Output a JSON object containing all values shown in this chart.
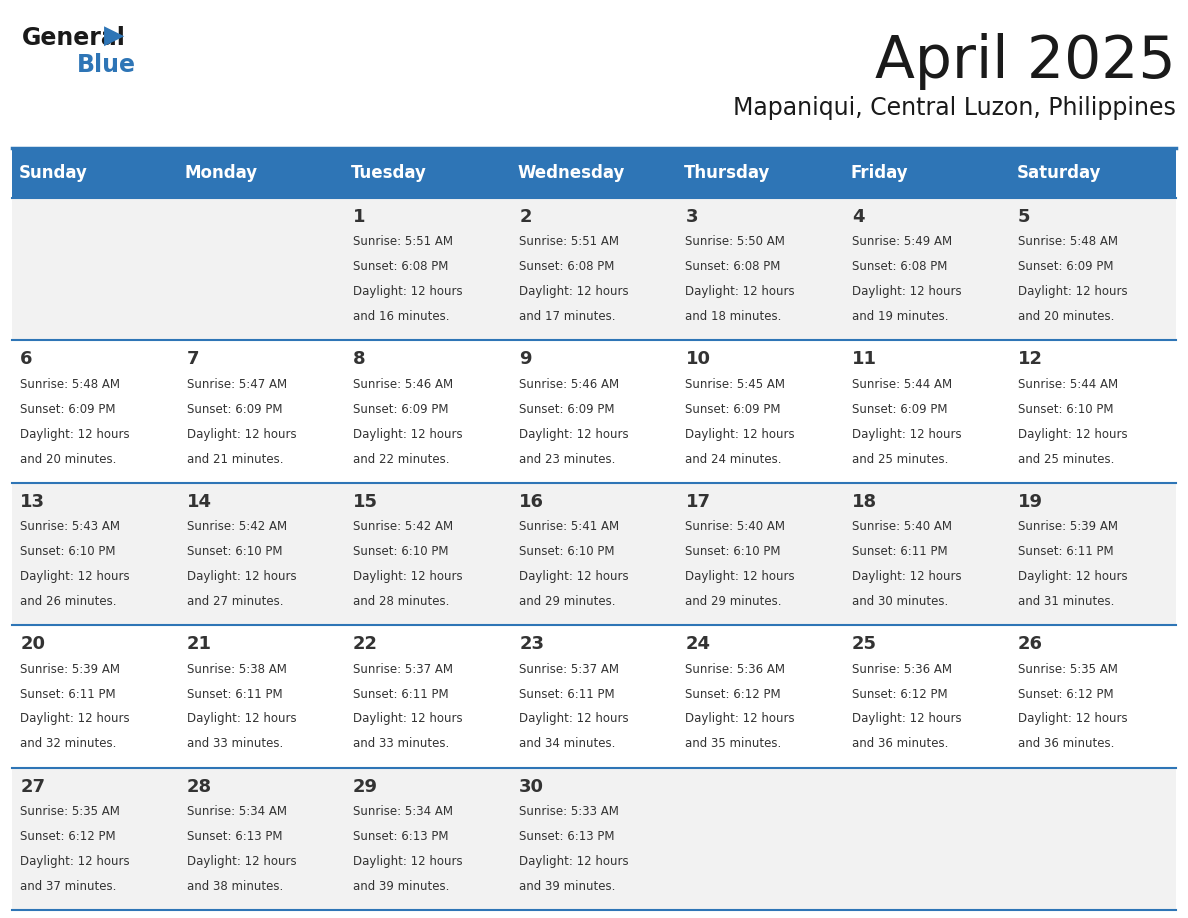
{
  "title": "April 2025",
  "subtitle": "Mapaniqui, Central Luzon, Philippines",
  "header_bg": "#2E75B6",
  "header_text_color": "#FFFFFF",
  "days_of_week": [
    "Sunday",
    "Monday",
    "Tuesday",
    "Wednesday",
    "Thursday",
    "Friday",
    "Saturday"
  ],
  "row_bg_odd": "#F2F2F2",
  "row_bg_even": "#FFFFFF",
  "cell_text_color": "#333333",
  "divider_color": "#2E75B6",
  "logo_general_color": "#1a1a1a",
  "logo_blue_color": "#2E75B6",
  "weeks": [
    {
      "days": [
        {
          "date": "",
          "sunrise": "",
          "sunset": "",
          "daylight": ""
        },
        {
          "date": "",
          "sunrise": "",
          "sunset": "",
          "daylight": ""
        },
        {
          "date": "1",
          "sunrise": "5:51 AM",
          "sunset": "6:08 PM",
          "daylight": "12 hours\nand 16 minutes."
        },
        {
          "date": "2",
          "sunrise": "5:51 AM",
          "sunset": "6:08 PM",
          "daylight": "12 hours\nand 17 minutes."
        },
        {
          "date": "3",
          "sunrise": "5:50 AM",
          "sunset": "6:08 PM",
          "daylight": "12 hours\nand 18 minutes."
        },
        {
          "date": "4",
          "sunrise": "5:49 AM",
          "sunset": "6:08 PM",
          "daylight": "12 hours\nand 19 minutes."
        },
        {
          "date": "5",
          "sunrise": "5:48 AM",
          "sunset": "6:09 PM",
          "daylight": "12 hours\nand 20 minutes."
        }
      ]
    },
    {
      "days": [
        {
          "date": "6",
          "sunrise": "5:48 AM",
          "sunset": "6:09 PM",
          "daylight": "12 hours\nand 20 minutes."
        },
        {
          "date": "7",
          "sunrise": "5:47 AM",
          "sunset": "6:09 PM",
          "daylight": "12 hours\nand 21 minutes."
        },
        {
          "date": "8",
          "sunrise": "5:46 AM",
          "sunset": "6:09 PM",
          "daylight": "12 hours\nand 22 minutes."
        },
        {
          "date": "9",
          "sunrise": "5:46 AM",
          "sunset": "6:09 PM",
          "daylight": "12 hours\nand 23 minutes."
        },
        {
          "date": "10",
          "sunrise": "5:45 AM",
          "sunset": "6:09 PM",
          "daylight": "12 hours\nand 24 minutes."
        },
        {
          "date": "11",
          "sunrise": "5:44 AM",
          "sunset": "6:09 PM",
          "daylight": "12 hours\nand 25 minutes."
        },
        {
          "date": "12",
          "sunrise": "5:44 AM",
          "sunset": "6:10 PM",
          "daylight": "12 hours\nand 25 minutes."
        }
      ]
    },
    {
      "days": [
        {
          "date": "13",
          "sunrise": "5:43 AM",
          "sunset": "6:10 PM",
          "daylight": "12 hours\nand 26 minutes."
        },
        {
          "date": "14",
          "sunrise": "5:42 AM",
          "sunset": "6:10 PM",
          "daylight": "12 hours\nand 27 minutes."
        },
        {
          "date": "15",
          "sunrise": "5:42 AM",
          "sunset": "6:10 PM",
          "daylight": "12 hours\nand 28 minutes."
        },
        {
          "date": "16",
          "sunrise": "5:41 AM",
          "sunset": "6:10 PM",
          "daylight": "12 hours\nand 29 minutes."
        },
        {
          "date": "17",
          "sunrise": "5:40 AM",
          "sunset": "6:10 PM",
          "daylight": "12 hours\nand 29 minutes."
        },
        {
          "date": "18",
          "sunrise": "5:40 AM",
          "sunset": "6:11 PM",
          "daylight": "12 hours\nand 30 minutes."
        },
        {
          "date": "19",
          "sunrise": "5:39 AM",
          "sunset": "6:11 PM",
          "daylight": "12 hours\nand 31 minutes."
        }
      ]
    },
    {
      "days": [
        {
          "date": "20",
          "sunrise": "5:39 AM",
          "sunset": "6:11 PM",
          "daylight": "12 hours\nand 32 minutes."
        },
        {
          "date": "21",
          "sunrise": "5:38 AM",
          "sunset": "6:11 PM",
          "daylight": "12 hours\nand 33 minutes."
        },
        {
          "date": "22",
          "sunrise": "5:37 AM",
          "sunset": "6:11 PM",
          "daylight": "12 hours\nand 33 minutes."
        },
        {
          "date": "23",
          "sunrise": "5:37 AM",
          "sunset": "6:11 PM",
          "daylight": "12 hours\nand 34 minutes."
        },
        {
          "date": "24",
          "sunrise": "5:36 AM",
          "sunset": "6:12 PM",
          "daylight": "12 hours\nand 35 minutes."
        },
        {
          "date": "25",
          "sunrise": "5:36 AM",
          "sunset": "6:12 PM",
          "daylight": "12 hours\nand 36 minutes."
        },
        {
          "date": "26",
          "sunrise": "5:35 AM",
          "sunset": "6:12 PM",
          "daylight": "12 hours\nand 36 minutes."
        }
      ]
    },
    {
      "days": [
        {
          "date": "27",
          "sunrise": "5:35 AM",
          "sunset": "6:12 PM",
          "daylight": "12 hours\nand 37 minutes."
        },
        {
          "date": "28",
          "sunrise": "5:34 AM",
          "sunset": "6:13 PM",
          "daylight": "12 hours\nand 38 minutes."
        },
        {
          "date": "29",
          "sunrise": "5:34 AM",
          "sunset": "6:13 PM",
          "daylight": "12 hours\nand 39 minutes."
        },
        {
          "date": "30",
          "sunrise": "5:33 AM",
          "sunset": "6:13 PM",
          "daylight": "12 hours\nand 39 minutes."
        },
        {
          "date": "",
          "sunrise": "",
          "sunset": "",
          "daylight": ""
        },
        {
          "date": "",
          "sunrise": "",
          "sunset": "",
          "daylight": ""
        },
        {
          "date": "",
          "sunrise": "",
          "sunset": "",
          "daylight": ""
        }
      ]
    }
  ]
}
